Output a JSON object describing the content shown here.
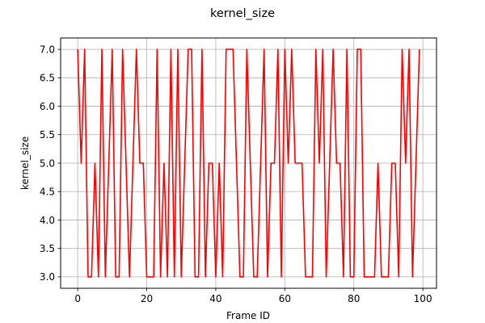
{
  "chart_data": {
    "type": "line",
    "title": "kernel_size",
    "xlabel": "Frame ID",
    "ylabel": "kernel_size",
    "xlim": [
      -4.95,
      103.95
    ],
    "ylim": [
      2.8,
      7.2
    ],
    "xticks": [
      0,
      20,
      40,
      60,
      80,
      100
    ],
    "xtick_labels": [
      "0",
      "20",
      "40",
      "60",
      "80",
      "100"
    ],
    "yticks": [
      3.0,
      3.5,
      4.0,
      4.5,
      5.0,
      5.5,
      6.0,
      6.5,
      7.0
    ],
    "ytick_labels": [
      "3.0",
      "3.5",
      "4.0",
      "4.5",
      "5.0",
      "5.5",
      "6.0",
      "6.5",
      "7.0"
    ],
    "grid": true,
    "line_color": "#ff0000",
    "series": [
      {
        "x": [
          0,
          1,
          2,
          3,
          4,
          5,
          6,
          7,
          8,
          9,
          10,
          11,
          12,
          13,
          14,
          15,
          16,
          17,
          18,
          19,
          20,
          21,
          22,
          23,
          24,
          25,
          26,
          27,
          28,
          29,
          30,
          31,
          32,
          33,
          34,
          35,
          36,
          37,
          38,
          39,
          40,
          41,
          42,
          43,
          44,
          45,
          46,
          47,
          48,
          49,
          50,
          51,
          52,
          53,
          54,
          55,
          56,
          57,
          58,
          59,
          60,
          61,
          62,
          63,
          64,
          65,
          66,
          67,
          68,
          69,
          70,
          71,
          72,
          73,
          74,
          75,
          76,
          77,
          78,
          79,
          80,
          81,
          82,
          83,
          84,
          85,
          86,
          87,
          88,
          89,
          90,
          91,
          92,
          93,
          94,
          95,
          96,
          97,
          98,
          99
        ],
        "y": [
          7,
          5,
          7,
          3,
          3,
          5,
          3,
          7,
          3,
          5,
          7,
          3,
          3,
          7,
          5,
          3,
          5,
          7,
          5,
          5,
          3,
          3,
          3,
          7,
          3,
          5,
          3,
          7,
          3,
          7,
          3,
          5,
          7,
          7,
          3,
          3,
          7,
          3,
          5,
          5,
          3,
          5,
          3,
          7,
          7,
          7,
          5,
          3,
          3,
          7,
          5,
          3,
          3,
          5,
          7,
          3,
          5,
          5,
          7,
          3,
          7,
          5,
          7,
          5,
          5,
          5,
          3,
          3,
          3,
          7,
          5,
          7,
          3,
          5,
          7,
          5,
          5,
          3,
          7,
          3,
          3,
          7,
          7,
          3,
          3,
          3,
          3,
          5,
          3,
          3,
          3,
          5,
          5,
          3,
          7,
          5,
          7,
          3,
          5,
          7
        ]
      }
    ]
  }
}
